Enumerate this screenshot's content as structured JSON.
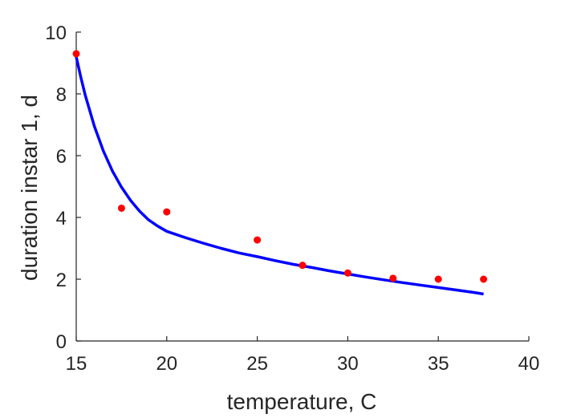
{
  "chart_data": {
    "type": "scatter",
    "title": "",
    "xlabel": "temperature, C",
    "ylabel": "duration instar 1, d",
    "xlim": [
      15,
      40
    ],
    "ylim": [
      0,
      10
    ],
    "xticks": [
      15,
      20,
      25,
      30,
      35,
      40
    ],
    "yticks": [
      0,
      2,
      4,
      6,
      8,
      10
    ],
    "grid": false,
    "legend": "none",
    "series": [
      {
        "kind": "points",
        "color": "#ff0000",
        "x": [
          15,
          17.5,
          20,
          25,
          27.5,
          30,
          32.5,
          35,
          37.5
        ],
        "y": [
          9.3,
          4.3,
          4.18,
          3.27,
          2.45,
          2.2,
          2.03,
          2.0,
          2.0
        ]
      },
      {
        "kind": "line",
        "color": "#0000ff",
        "x": [
          15,
          15.25,
          15.5,
          16,
          16.5,
          17,
          17.5,
          18,
          18.5,
          19,
          19.5,
          20,
          21,
          22,
          23,
          24,
          25,
          26,
          27,
          28,
          29,
          30,
          31,
          32,
          33,
          34,
          35,
          36,
          37,
          37.5
        ],
        "y": [
          9.2,
          8.55,
          7.95,
          6.95,
          6.15,
          5.5,
          4.98,
          4.55,
          4.2,
          3.92,
          3.72,
          3.55,
          3.35,
          3.17,
          3.0,
          2.85,
          2.73,
          2.6,
          2.48,
          2.38,
          2.27,
          2.17,
          2.07,
          1.98,
          1.89,
          1.81,
          1.73,
          1.65,
          1.57,
          1.52
        ]
      }
    ]
  }
}
